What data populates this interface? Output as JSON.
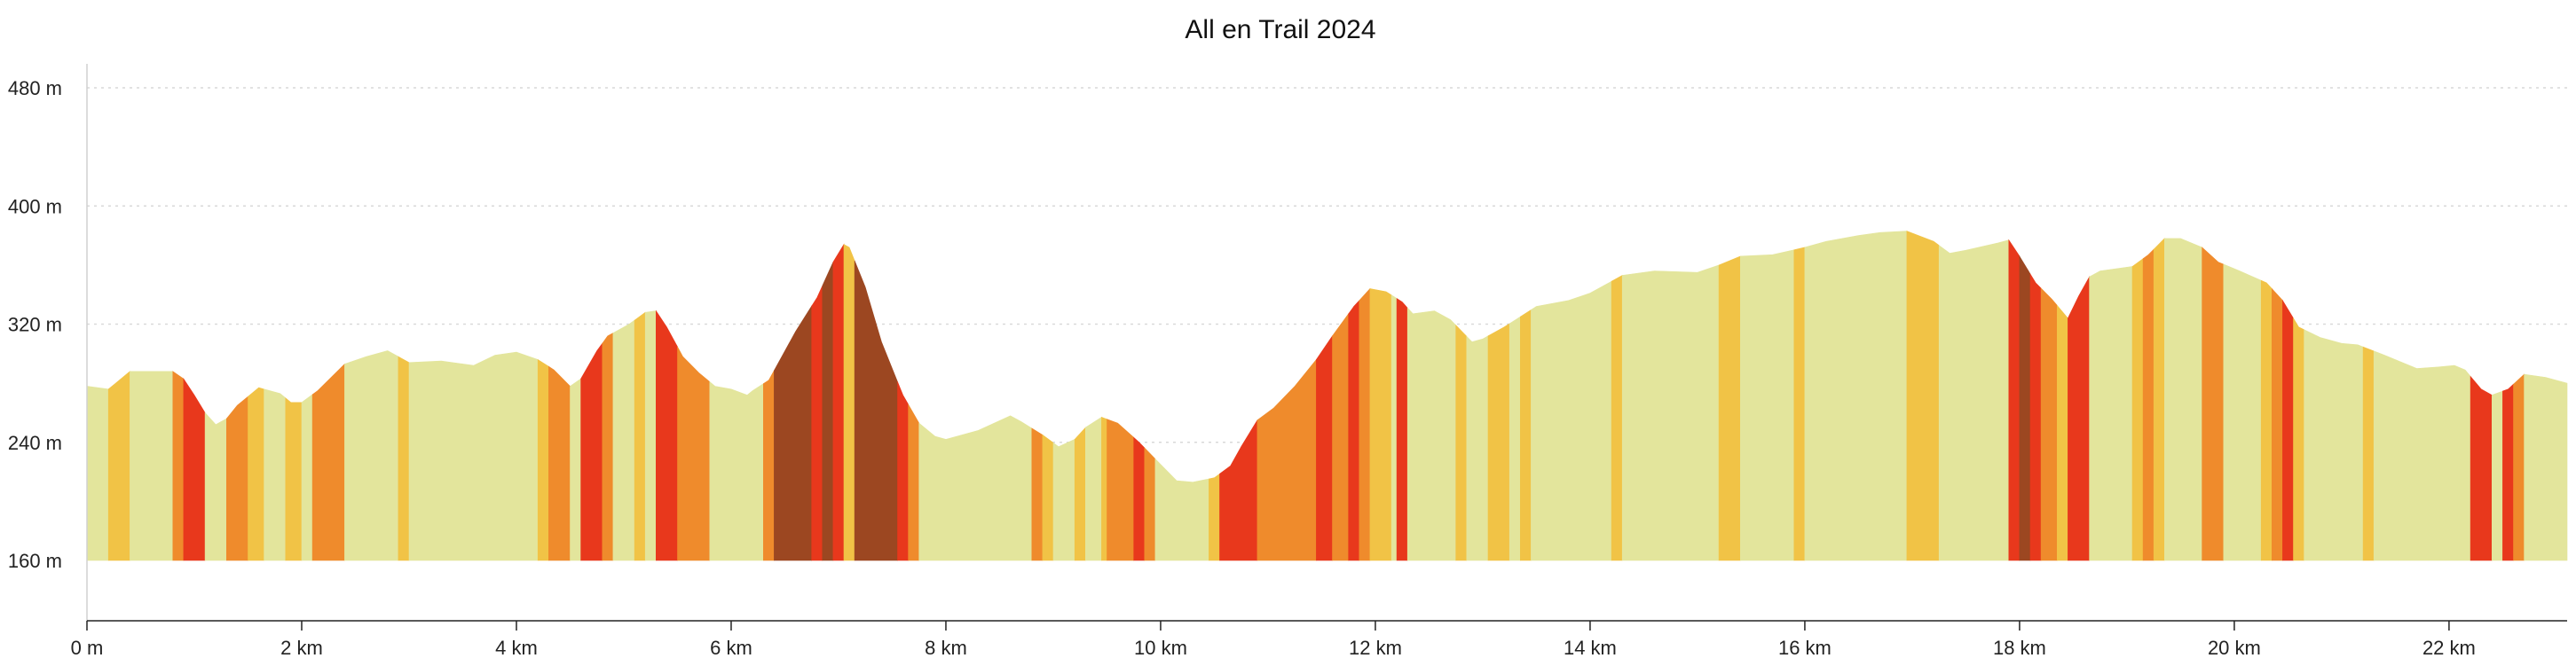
{
  "chart_data": {
    "type": "area",
    "title": "All en Trail 2024",
    "xlabel": "",
    "ylabel": "",
    "xlim": [
      0,
      23.1
    ],
    "ylim": [
      160,
      500
    ],
    "grid": true,
    "x_ticks": [
      {
        "value": 0,
        "label": "0 m"
      },
      {
        "value": 2,
        "label": "2 km"
      },
      {
        "value": 4,
        "label": "4 km"
      },
      {
        "value": 6,
        "label": "6 km"
      },
      {
        "value": 8,
        "label": "8 km"
      },
      {
        "value": 10,
        "label": "10 km"
      },
      {
        "value": 12,
        "label": "12 km"
      },
      {
        "value": 14,
        "label": "14 km"
      },
      {
        "value": 16,
        "label": "16 km"
      },
      {
        "value": 18,
        "label": "18 km"
      },
      {
        "value": 20,
        "label": "20 km"
      },
      {
        "value": 22,
        "label": "22 km"
      }
    ],
    "y_ticks": [
      {
        "value": 160,
        "label": "160 m"
      },
      {
        "value": 240,
        "label": "240 m"
      },
      {
        "value": 320,
        "label": "320 m"
      },
      {
        "value": 400,
        "label": "400 m"
      },
      {
        "value": 480,
        "label": "480 m"
      }
    ],
    "gradient_colors": {
      "flat": "#e3e59c",
      "moderate": "#f1c346",
      "steep": "#ef8b2c",
      "very_steep": "#e8381c",
      "extreme": "#9c4721"
    },
    "profile": [
      [
        0.0,
        278
      ],
      [
        0.2,
        276
      ],
      [
        0.4,
        288
      ],
      [
        0.8,
        288
      ],
      [
        0.9,
        283
      ],
      [
        1.0,
        272
      ],
      [
        1.1,
        260
      ],
      [
        1.2,
        252
      ],
      [
        1.3,
        256
      ],
      [
        1.4,
        265
      ],
      [
        1.6,
        277
      ],
      [
        1.8,
        273
      ],
      [
        1.9,
        267
      ],
      [
        2.0,
        267
      ],
      [
        2.15,
        275
      ],
      [
        2.4,
        293
      ],
      [
        2.6,
        298
      ],
      [
        2.8,
        302
      ],
      [
        2.9,
        298
      ],
      [
        3.0,
        294
      ],
      [
        3.3,
        295
      ],
      [
        3.6,
        292
      ],
      [
        3.8,
        299
      ],
      [
        4.0,
        301
      ],
      [
        4.2,
        296
      ],
      [
        4.35,
        289
      ],
      [
        4.5,
        278
      ],
      [
        4.6,
        283
      ],
      [
        4.75,
        302
      ],
      [
        4.85,
        312
      ],
      [
        5.05,
        320
      ],
      [
        5.2,
        328
      ],
      [
        5.3,
        329
      ],
      [
        5.4,
        318
      ],
      [
        5.55,
        298
      ],
      [
        5.7,
        287
      ],
      [
        5.85,
        278
      ],
      [
        6.0,
        276
      ],
      [
        6.15,
        272
      ],
      [
        6.2,
        275
      ],
      [
        6.35,
        282
      ],
      [
        6.6,
        315
      ],
      [
        6.8,
        338
      ],
      [
        6.95,
        362
      ],
      [
        7.05,
        374
      ],
      [
        7.1,
        372
      ],
      [
        7.25,
        345
      ],
      [
        7.4,
        308
      ],
      [
        7.6,
        272
      ],
      [
        7.75,
        253
      ],
      [
        7.9,
        244
      ],
      [
        8.0,
        242
      ],
      [
        8.3,
        248
      ],
      [
        8.6,
        258
      ],
      [
        8.7,
        254
      ],
      [
        8.9,
        245
      ],
      [
        9.05,
        237
      ],
      [
        9.2,
        242
      ],
      [
        9.3,
        250
      ],
      [
        9.45,
        257
      ],
      [
        9.6,
        253
      ],
      [
        9.8,
        240
      ],
      [
        10.0,
        225
      ],
      [
        10.15,
        214
      ],
      [
        10.3,
        213
      ],
      [
        10.5,
        216
      ],
      [
        10.65,
        224
      ],
      [
        10.75,
        237
      ],
      [
        10.9,
        255
      ],
      [
        11.05,
        263
      ],
      [
        11.25,
        278
      ],
      [
        11.45,
        296
      ],
      [
        11.6,
        312
      ],
      [
        11.8,
        332
      ],
      [
        11.95,
        344
      ],
      [
        12.1,
        342
      ],
      [
        12.25,
        335
      ],
      [
        12.35,
        327
      ],
      [
        12.55,
        329
      ],
      [
        12.7,
        323
      ],
      [
        12.9,
        308
      ],
      [
        13.0,
        310
      ],
      [
        13.2,
        318
      ],
      [
        13.35,
        325
      ],
      [
        13.5,
        332
      ],
      [
        13.8,
        336
      ],
      [
        14.0,
        341
      ],
      [
        14.3,
        353
      ],
      [
        14.6,
        356
      ],
      [
        15.0,
        355
      ],
      [
        15.2,
        360
      ],
      [
        15.4,
        366
      ],
      [
        15.7,
        367
      ],
      [
        16.0,
        372
      ],
      [
        16.2,
        376
      ],
      [
        16.5,
        380
      ],
      [
        16.7,
        382
      ],
      [
        16.95,
        383
      ],
      [
        17.2,
        376
      ],
      [
        17.35,
        368
      ],
      [
        17.5,
        370
      ],
      [
        17.8,
        375
      ],
      [
        17.9,
        377
      ],
      [
        18.0,
        366
      ],
      [
        18.15,
        348
      ],
      [
        18.3,
        337
      ],
      [
        18.45,
        324
      ],
      [
        18.55,
        339
      ],
      [
        18.65,
        352
      ],
      [
        18.75,
        356
      ],
      [
        19.05,
        359
      ],
      [
        19.2,
        367
      ],
      [
        19.35,
        378
      ],
      [
        19.5,
        378
      ],
      [
        19.7,
        372
      ],
      [
        19.85,
        362
      ],
      [
        20.05,
        356
      ],
      [
        20.3,
        348
      ],
      [
        20.45,
        336
      ],
      [
        20.6,
        318
      ],
      [
        20.8,
        311
      ],
      [
        21.0,
        307
      ],
      [
        21.15,
        306
      ],
      [
        21.4,
        299
      ],
      [
        21.7,
        290
      ],
      [
        21.9,
        291
      ],
      [
        22.05,
        292
      ],
      [
        22.15,
        289
      ],
      [
        22.3,
        276
      ],
      [
        22.4,
        272
      ],
      [
        22.55,
        276
      ],
      [
        22.7,
        286
      ],
      [
        22.9,
        284
      ],
      [
        23.1,
        280
      ]
    ],
    "bands": [
      [
        0.0,
        0.2,
        "flat"
      ],
      [
        0.2,
        0.4,
        "moderate"
      ],
      [
        0.4,
        0.8,
        "flat"
      ],
      [
        0.8,
        0.9,
        "steep"
      ],
      [
        0.9,
        1.1,
        "very_steep"
      ],
      [
        1.1,
        1.3,
        "flat"
      ],
      [
        1.3,
        1.5,
        "steep"
      ],
      [
        1.5,
        1.65,
        "moderate"
      ],
      [
        1.65,
        1.85,
        "flat"
      ],
      [
        1.85,
        2.0,
        "moderate"
      ],
      [
        2.0,
        2.1,
        "flat"
      ],
      [
        2.1,
        2.4,
        "steep"
      ],
      [
        2.4,
        2.9,
        "flat"
      ],
      [
        2.9,
        3.0,
        "moderate"
      ],
      [
        3.0,
        4.2,
        "flat"
      ],
      [
        4.2,
        4.3,
        "moderate"
      ],
      [
        4.3,
        4.5,
        "steep"
      ],
      [
        4.5,
        4.6,
        "flat"
      ],
      [
        4.6,
        4.8,
        "very_steep"
      ],
      [
        4.8,
        4.9,
        "steep"
      ],
      [
        4.9,
        5.1,
        "flat"
      ],
      [
        5.1,
        5.2,
        "moderate"
      ],
      [
        5.2,
        5.3,
        "flat"
      ],
      [
        5.3,
        5.5,
        "very_steep"
      ],
      [
        5.5,
        5.8,
        "steep"
      ],
      [
        5.8,
        6.3,
        "flat"
      ],
      [
        6.3,
        6.4,
        "steep"
      ],
      [
        6.4,
        6.75,
        "extreme"
      ],
      [
        6.75,
        6.85,
        "very_steep"
      ],
      [
        6.85,
        6.95,
        "extreme"
      ],
      [
        6.95,
        7.05,
        "very_steep"
      ],
      [
        7.05,
        7.15,
        "moderate"
      ],
      [
        7.15,
        7.55,
        "extreme"
      ],
      [
        7.55,
        7.65,
        "very_steep"
      ],
      [
        7.65,
        7.75,
        "steep"
      ],
      [
        7.75,
        8.8,
        "flat"
      ],
      [
        8.8,
        8.9,
        "steep"
      ],
      [
        8.9,
        9.0,
        "moderate"
      ],
      [
        9.0,
        9.2,
        "flat"
      ],
      [
        9.2,
        9.3,
        "moderate"
      ],
      [
        9.3,
        9.45,
        "flat"
      ],
      [
        9.45,
        9.5,
        "moderate"
      ],
      [
        9.5,
        9.75,
        "steep"
      ],
      [
        9.75,
        9.85,
        "very_steep"
      ],
      [
        9.85,
        9.95,
        "steep"
      ],
      [
        9.95,
        10.45,
        "flat"
      ],
      [
        10.45,
        10.55,
        "moderate"
      ],
      [
        10.55,
        10.9,
        "very_steep"
      ],
      [
        10.9,
        11.45,
        "steep"
      ],
      [
        11.45,
        11.6,
        "very_steep"
      ],
      [
        11.6,
        11.75,
        "steep"
      ],
      [
        11.75,
        11.85,
        "very_steep"
      ],
      [
        11.85,
        11.95,
        "steep"
      ],
      [
        11.95,
        12.15,
        "moderate"
      ],
      [
        12.15,
        12.2,
        "flat"
      ],
      [
        12.2,
        12.3,
        "very_steep"
      ],
      [
        12.3,
        12.75,
        "flat"
      ],
      [
        12.75,
        12.85,
        "moderate"
      ],
      [
        12.85,
        13.05,
        "flat"
      ],
      [
        13.05,
        13.25,
        "moderate"
      ],
      [
        13.25,
        13.35,
        "flat"
      ],
      [
        13.35,
        13.45,
        "moderate"
      ],
      [
        13.45,
        14.2,
        "flat"
      ],
      [
        14.2,
        14.3,
        "moderate"
      ],
      [
        14.3,
        15.2,
        "flat"
      ],
      [
        15.2,
        15.4,
        "moderate"
      ],
      [
        15.4,
        15.9,
        "flat"
      ],
      [
        15.9,
        16.0,
        "moderate"
      ],
      [
        16.0,
        16.95,
        "flat"
      ],
      [
        16.95,
        17.25,
        "moderate"
      ],
      [
        17.25,
        17.9,
        "flat"
      ],
      [
        17.9,
        18.0,
        "very_steep"
      ],
      [
        18.0,
        18.1,
        "extreme"
      ],
      [
        18.1,
        18.2,
        "very_steep"
      ],
      [
        18.2,
        18.35,
        "steep"
      ],
      [
        18.35,
        18.45,
        "moderate"
      ],
      [
        18.45,
        18.65,
        "very_steep"
      ],
      [
        18.65,
        19.05,
        "flat"
      ],
      [
        19.05,
        19.15,
        "moderate"
      ],
      [
        19.15,
        19.25,
        "steep"
      ],
      [
        19.25,
        19.35,
        "moderate"
      ],
      [
        19.35,
        19.7,
        "flat"
      ],
      [
        19.7,
        19.9,
        "steep"
      ],
      [
        19.9,
        20.25,
        "flat"
      ],
      [
        20.25,
        20.35,
        "moderate"
      ],
      [
        20.35,
        20.45,
        "steep"
      ],
      [
        20.45,
        20.55,
        "very_steep"
      ],
      [
        20.55,
        20.65,
        "moderate"
      ],
      [
        20.65,
        21.2,
        "flat"
      ],
      [
        21.2,
        21.3,
        "moderate"
      ],
      [
        21.3,
        22.2,
        "flat"
      ],
      [
        22.2,
        22.4,
        "very_steep"
      ],
      [
        22.4,
        22.5,
        "flat"
      ],
      [
        22.5,
        22.6,
        "very_steep"
      ],
      [
        22.6,
        22.7,
        "steep"
      ],
      [
        22.7,
        23.1,
        "flat"
      ]
    ]
  }
}
